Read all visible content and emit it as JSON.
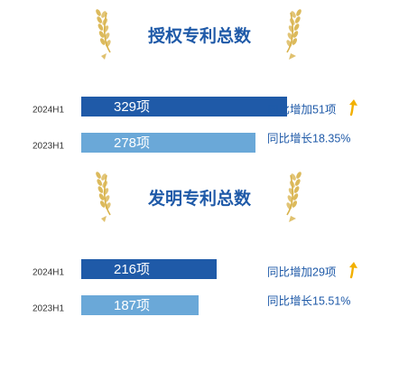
{
  "colors": {
    "bar_2024": "#1f5aa8",
    "bar_2023": "#6aa8d8",
    "bar_bg": "#e6edf5",
    "text_dark": "#1f5aa8",
    "gold": "#d8b24a",
    "arrow": "#f2b000"
  },
  "chart_data": [
    {
      "type": "bar",
      "title": "授权专利总数",
      "categories": [
        "2024H1",
        "2023H1"
      ],
      "values": [
        329,
        278
      ],
      "value_labels": [
        "329项",
        "278项"
      ],
      "annotations": [
        "同比增加51项",
        "同比增长18.35%"
      ],
      "increase_arrow": true
    },
    {
      "type": "bar",
      "title": "发明专利总数",
      "categories": [
        "2024H1",
        "2023H1"
      ],
      "values": [
        216,
        187
      ],
      "value_labels": [
        "216项",
        "187项"
      ],
      "annotations": [
        "同比增加29项",
        "同比增长15.51%"
      ],
      "increase_arrow": true
    }
  ]
}
